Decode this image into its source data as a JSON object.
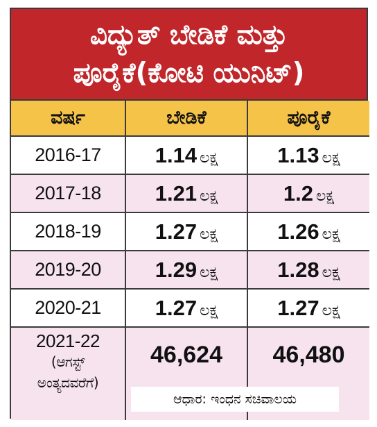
{
  "title": {
    "line1": "ವಿದ್ಯುತ್ ಬೇಡಿಕೆ ಮತ್ತು",
    "line2": "ಪೂರೈಕೆ(ಕೋಟಿ ಯುನಿಟ್)"
  },
  "colors": {
    "title_bg": "#c1262b",
    "header_bg": "#f6c349",
    "alt_row_bg": "#f7e3ee"
  },
  "chart_data": {
    "type": "table",
    "title": "ವಿದ್ಯುತ್ ಬೇಡಿಕೆ ಮತ್ತು ಪೂರೈಕೆ(ಕೋಟಿ ಯುನಿಟ್)",
    "columns": [
      "ವರ್ಷ",
      "ಬೇಡಿಕೆ",
      "ಪೂರೈಕೆ"
    ],
    "rows": [
      {
        "year": "2016-17",
        "demand": "1.14",
        "supply": "1.13",
        "unit": "ಲಕ್ಷ"
      },
      {
        "year": "2017-18",
        "demand": "1.21",
        "supply": "1.2",
        "unit": "ಲಕ್ಷ"
      },
      {
        "year": "2018-19",
        "demand": "1.27",
        "supply": "1.26",
        "unit": "ಲಕ್ಷ"
      },
      {
        "year": "2019-20",
        "demand": "1.29",
        "supply": "1.28",
        "unit": "ಲಕ್ಷ"
      },
      {
        "year": "2020-21",
        "demand": "1.27",
        "supply": "1.27",
        "unit": "ಲಕ್ಷ"
      }
    ],
    "last_row": {
      "year": "2021-22",
      "note_line1": "(ಆಗಸ್ಟ್",
      "note_line2": "ಅಂತ್ಯದವರೆಗೆ)",
      "demand": "46,624",
      "supply": "46,480"
    },
    "source": "ಆಧಾರ: ಇಂಧನ ಸಚಿವಾಲಯ"
  }
}
